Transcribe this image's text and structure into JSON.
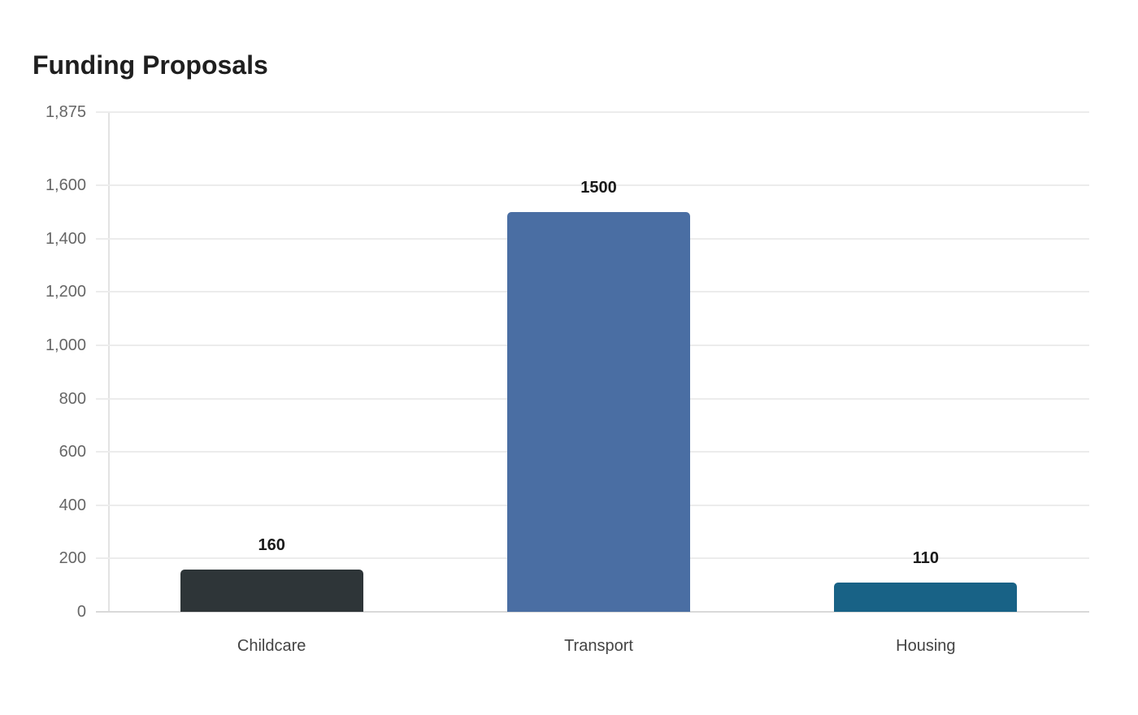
{
  "chart_data": {
    "type": "bar",
    "title": "Funding Proposals",
    "xlabel": "",
    "ylabel": "",
    "categories": [
      "Childcare",
      "Transport",
      "Housing"
    ],
    "values": [
      160,
      1500,
      110
    ],
    "colors": [
      "#2e3538",
      "#4a6ea3",
      "#186286"
    ],
    "ylim": [
      0,
      1875
    ],
    "yticks": [
      0,
      200,
      400,
      600,
      800,
      1000,
      1200,
      1400,
      1600,
      1875
    ],
    "ytick_labels": [
      "0",
      "200",
      "400",
      "600",
      "800",
      "1,000",
      "1,200",
      "1,400",
      "1,600",
      "1,875"
    ],
    "data_labels": [
      "160",
      "1500",
      "110"
    ],
    "grid": true,
    "legend": null
  },
  "header": {
    "title": "Funding Proposals"
  }
}
